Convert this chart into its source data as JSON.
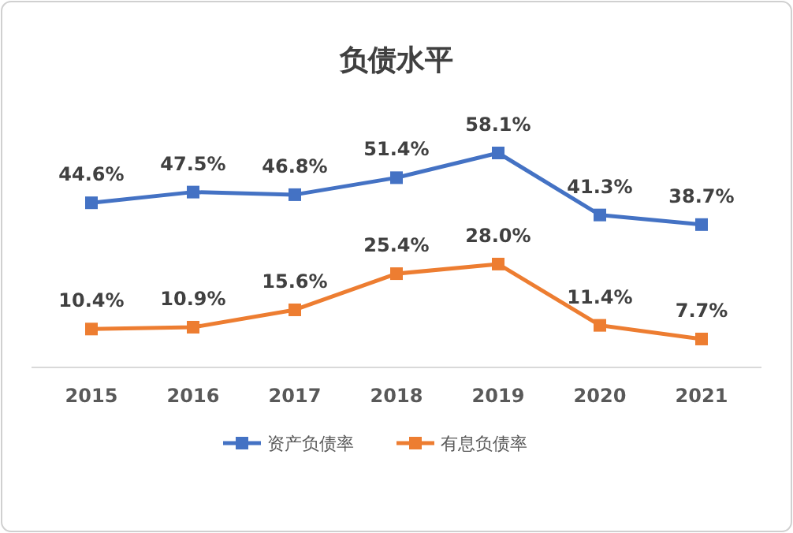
{
  "chart_data": {
    "type": "line",
    "title": "负债水平",
    "categories": [
      "2015",
      "2016",
      "2017",
      "2018",
      "2019",
      "2020",
      "2021"
    ],
    "series": [
      {
        "name": "资产负债率",
        "color": "#4472c4",
        "values": [
          44.6,
          47.5,
          46.8,
          51.4,
          58.1,
          41.3,
          38.7
        ],
        "value_labels": [
          "44.6%",
          "47.5%",
          "46.8%",
          "51.4%",
          "58.1%",
          "41.3%",
          "38.7%"
        ]
      },
      {
        "name": "有息负债率",
        "color": "#ed7d31",
        "values": [
          10.4,
          10.9,
          15.6,
          25.4,
          28.0,
          11.4,
          7.7
        ],
        "value_labels": [
          "10.4%",
          "10.9%",
          "15.6%",
          "25.4%",
          "28.0%",
          "11.4%",
          "7.7%"
        ]
      }
    ],
    "tick_labels": "x",
    "marker": "square",
    "line_style": "solid",
    "legend": "bottom"
  }
}
